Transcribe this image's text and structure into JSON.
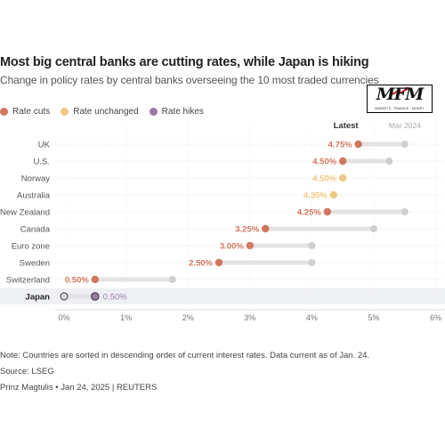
{
  "title": "Most big central banks are cutting rates, while Japan is hiking",
  "subtitle": "Change in policy rates by central banks overseeing the 10 most traded currencies",
  "logo": {
    "text": "MFM",
    "subtext": "MARKETS · FINANCE · MONEY"
  },
  "legend": [
    {
      "label": "Rate cuts",
      "color": "#d1775f"
    },
    {
      "label": "Rate unchanged",
      "color": "#f0c985"
    },
    {
      "label": "Rate hikes",
      "color": "#9b7aa6"
    }
  ],
  "note": "Note: Countries are sorted in descending order of current interest rates. Data current as of Jan. 24.",
  "source": "Source: LSEG",
  "credit": "Prinz Magtulis • Jan 24, 2025 | REUTERS",
  "chart_data": {
    "type": "dot",
    "column_labels": {
      "latest": "Latest",
      "previous": "Mar 2024"
    },
    "x_ticks": [
      "0%",
      "1%",
      "2%",
      "3%",
      "4%",
      "5%",
      "6%"
    ],
    "xlim": [
      0,
      6
    ],
    "highlighted_category": "Japan",
    "colors": {
      "cut": "#d1775f",
      "unchanged": "#f0c985",
      "hike": "#9b7aa6",
      "previous": "#cfcfcf",
      "range": "#e3e3e3"
    },
    "series": [
      {
        "name": "Latest",
        "values": [
          4.75,
          4.5,
          4.5,
          4.35,
          4.25,
          3.25,
          3.0,
          2.5,
          0.5,
          0.5
        ]
      },
      {
        "name": "Mar 2024",
        "values": [
          5.5,
          5.25,
          4.5,
          4.35,
          5.5,
          5.0,
          4.0,
          4.0,
          1.75,
          0.0
        ]
      }
    ],
    "categories": [
      "UK",
      "U.S.",
      "Norway",
      "Australia",
      "New Zealand",
      "Canada",
      "Euro zone",
      "Sweden",
      "Switzerland",
      "Japan"
    ],
    "status": [
      "cut",
      "cut",
      "unchanged",
      "unchanged",
      "cut",
      "cut",
      "cut",
      "cut",
      "cut",
      "hike"
    ],
    "value_labels": [
      "4.75%",
      "4.50%",
      "4.50%",
      "4.35%",
      "4.25%",
      "3.25%",
      "3.00%",
      "2.50%",
      "0.50%",
      "0.50%"
    ]
  }
}
